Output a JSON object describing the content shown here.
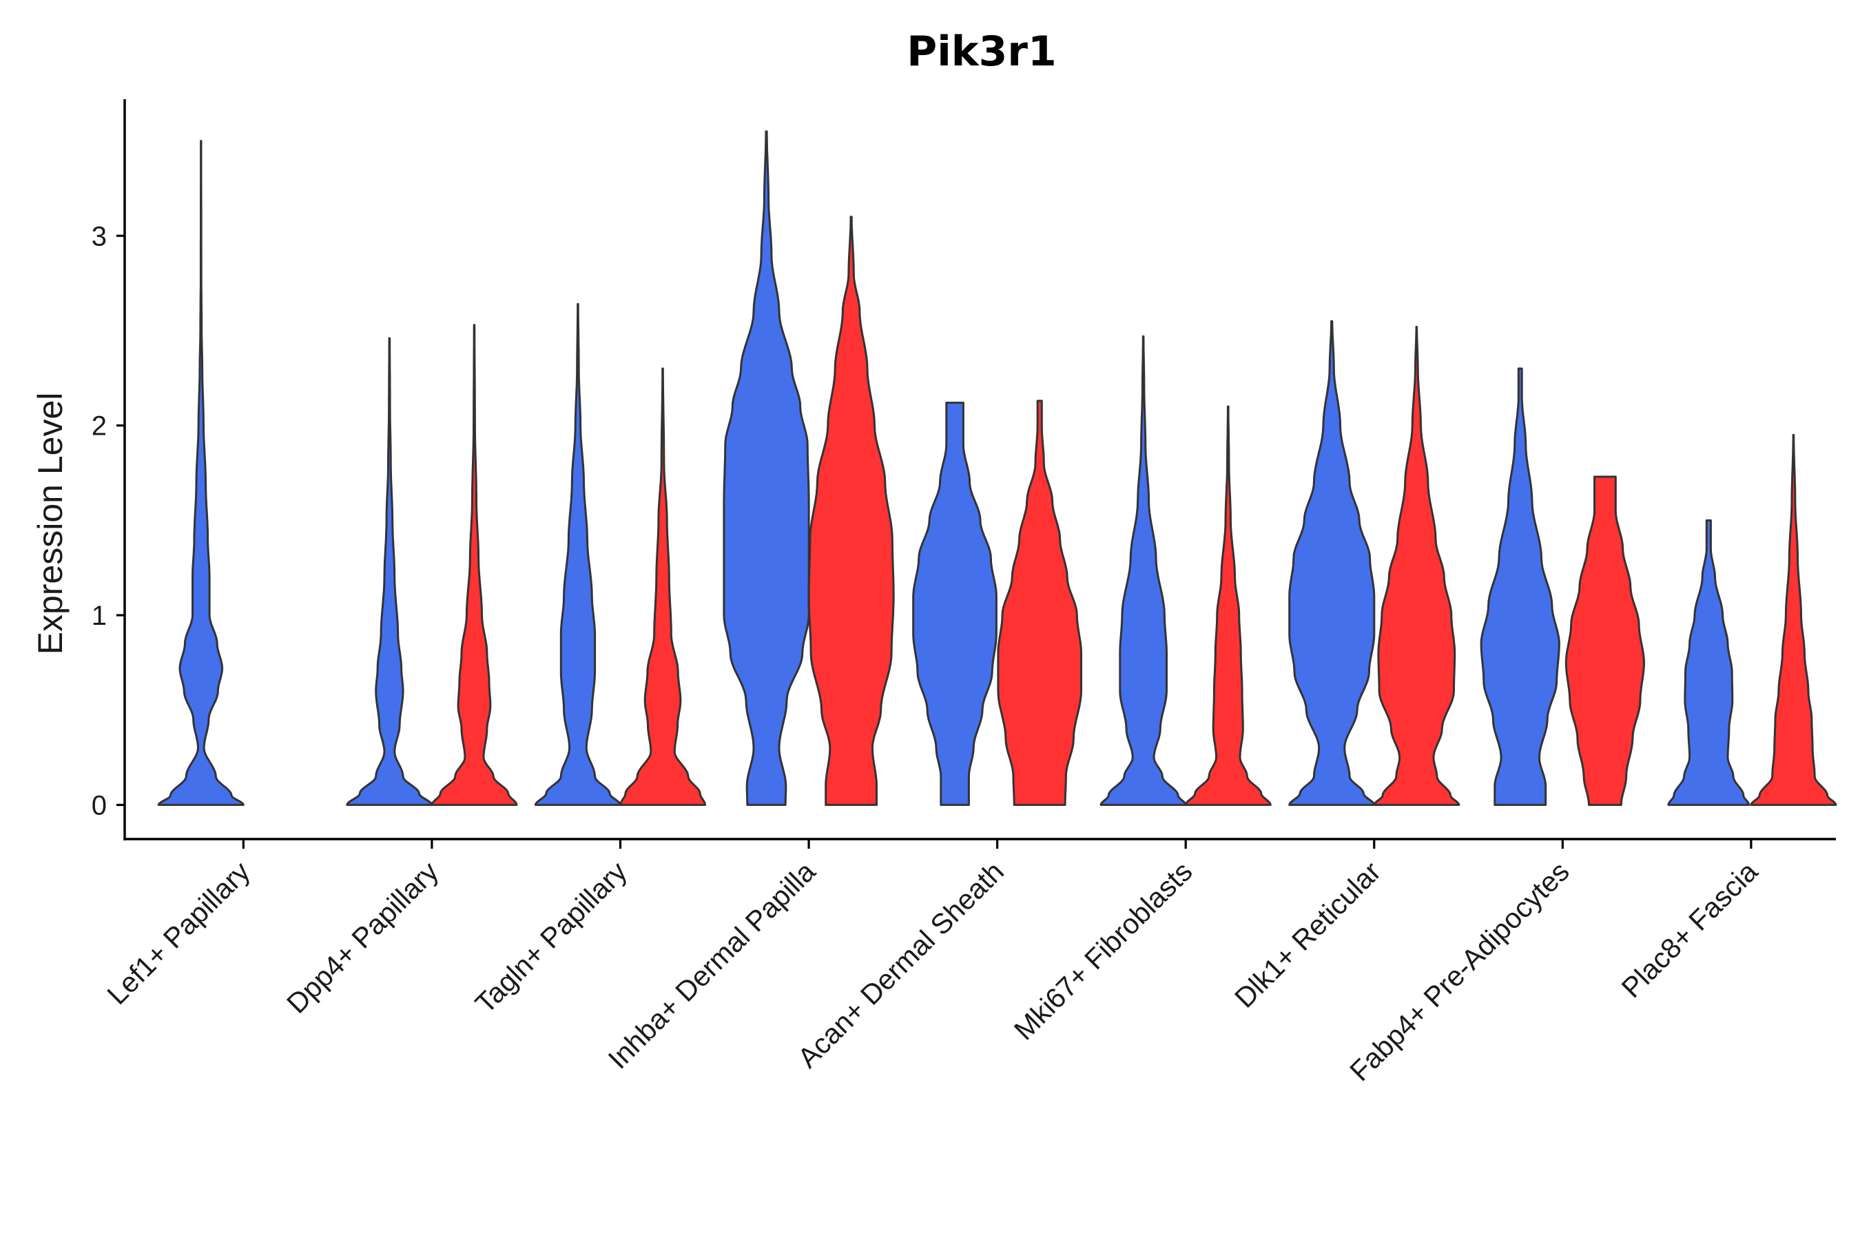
{
  "chart_data": {
    "type": "violin",
    "title": "Pik3r1",
    "xlabel": "",
    "ylabel": "Expression Level",
    "ylim": [
      -0.18,
      3.72
    ],
    "yticks": [
      0,
      1,
      2,
      3
    ],
    "categories": [
      "Lef1+ Papillary",
      "Dpp4+ Papillary",
      "Tagln+ Papillary",
      "Inhba+ Dermal Papilla",
      "Acan+ Dermal Sheath",
      "Mki67+ Fibroblasts",
      "Dlk1+ Reticular",
      "Fabp4+ Pre-Adipocytes",
      "Plac8+ Fascia"
    ],
    "groups": [
      {
        "name": "group1",
        "color": "#4470ec"
      },
      {
        "name": "group2",
        "color": "#ff3333"
      }
    ],
    "violins": [
      {
        "category": "Lef1+ Papillary",
        "group": "group1",
        "max": 3.5,
        "profile": [
          [
            0,
            1.0
          ],
          [
            0.05,
            0.72
          ],
          [
            0.15,
            0.35
          ],
          [
            0.3,
            0.07
          ],
          [
            0.45,
            0.18
          ],
          [
            0.6,
            0.4
          ],
          [
            0.72,
            0.5
          ],
          [
            0.85,
            0.38
          ],
          [
            1.0,
            0.2
          ],
          [
            1.2,
            0.2
          ],
          [
            1.4,
            0.16
          ],
          [
            1.7,
            0.11
          ],
          [
            2.0,
            0.06
          ],
          [
            2.3,
            0.03
          ],
          [
            2.5,
            0.015
          ],
          [
            2.8,
            0.006
          ],
          [
            3.5,
            0.003
          ]
        ]
      },
      {
        "category": "Dpp4+ Papillary",
        "group": "group1",
        "max": 2.46,
        "profile": [
          [
            0,
            1.0
          ],
          [
            0.06,
            0.7
          ],
          [
            0.15,
            0.32
          ],
          [
            0.28,
            0.12
          ],
          [
            0.42,
            0.24
          ],
          [
            0.6,
            0.32
          ],
          [
            0.72,
            0.28
          ],
          [
            0.9,
            0.2
          ],
          [
            1.2,
            0.12
          ],
          [
            1.5,
            0.07
          ],
          [
            1.8,
            0.03
          ],
          [
            2.1,
            0.012
          ],
          [
            2.46,
            0.005
          ]
        ]
      },
      {
        "category": "Dpp4+ Papillary",
        "group": "group2",
        "max": 2.53,
        "profile": [
          [
            0,
            1.0
          ],
          [
            0.06,
            0.8
          ],
          [
            0.15,
            0.45
          ],
          [
            0.25,
            0.22
          ],
          [
            0.4,
            0.3
          ],
          [
            0.52,
            0.38
          ],
          [
            0.65,
            0.35
          ],
          [
            0.8,
            0.3
          ],
          [
            1.0,
            0.18
          ],
          [
            1.3,
            0.1
          ],
          [
            1.6,
            0.05
          ],
          [
            2.0,
            0.015
          ],
          [
            2.53,
            0.005
          ]
        ]
      },
      {
        "category": "Tagln+ Papillary",
        "group": "group1",
        "max": 2.64,
        "profile": [
          [
            0,
            1.0
          ],
          [
            0.06,
            0.75
          ],
          [
            0.15,
            0.4
          ],
          [
            0.3,
            0.2
          ],
          [
            0.5,
            0.33
          ],
          [
            0.7,
            0.4
          ],
          [
            0.9,
            0.4
          ],
          [
            1.1,
            0.33
          ],
          [
            1.4,
            0.22
          ],
          [
            1.7,
            0.14
          ],
          [
            2.0,
            0.06
          ],
          [
            2.3,
            0.02
          ],
          [
            2.64,
            0.005
          ]
        ]
      },
      {
        "category": "Tagln+ Papillary",
        "group": "group2",
        "max": 2.3,
        "profile": [
          [
            0,
            1.0
          ],
          [
            0.06,
            0.88
          ],
          [
            0.15,
            0.6
          ],
          [
            0.28,
            0.28
          ],
          [
            0.42,
            0.35
          ],
          [
            0.55,
            0.42
          ],
          [
            0.7,
            0.36
          ],
          [
            0.9,
            0.2
          ],
          [
            1.2,
            0.15
          ],
          [
            1.5,
            0.1
          ],
          [
            1.8,
            0.03
          ],
          [
            2.3,
            0.005
          ]
        ]
      },
      {
        "category": "Inhba+ Dermal Papilla",
        "group": "group1",
        "max": 3.55,
        "profile": [
          [
            0,
            0.45
          ],
          [
            0.1,
            0.46
          ],
          [
            0.3,
            0.3
          ],
          [
            0.55,
            0.48
          ],
          [
            0.8,
            0.85
          ],
          [
            1.0,
            1.0
          ],
          [
            1.3,
            1.0
          ],
          [
            1.6,
            1.0
          ],
          [
            1.9,
            0.97
          ],
          [
            2.1,
            0.8
          ],
          [
            2.3,
            0.6
          ],
          [
            2.6,
            0.3
          ],
          [
            2.9,
            0.12
          ],
          [
            3.2,
            0.05
          ],
          [
            3.55,
            0.01
          ]
        ]
      },
      {
        "category": "Inhba+ Dermal Papilla",
        "group": "group2",
        "max": 3.1,
        "profile": [
          [
            0,
            0.6
          ],
          [
            0.1,
            0.6
          ],
          [
            0.3,
            0.5
          ],
          [
            0.5,
            0.7
          ],
          [
            0.8,
            0.95
          ],
          [
            1.1,
            1.0
          ],
          [
            1.4,
            0.97
          ],
          [
            1.7,
            0.8
          ],
          [
            2.0,
            0.55
          ],
          [
            2.3,
            0.38
          ],
          [
            2.6,
            0.2
          ],
          [
            2.8,
            0.06
          ],
          [
            3.1,
            0.01
          ]
        ]
      },
      {
        "category": "Acan+ Dermal Sheath",
        "group": "group1",
        "max": 2.12,
        "profile": [
          [
            0,
            0.33
          ],
          [
            0.15,
            0.33
          ],
          [
            0.3,
            0.44
          ],
          [
            0.5,
            0.65
          ],
          [
            0.7,
            0.88
          ],
          [
            0.9,
            0.98
          ],
          [
            1.1,
            0.98
          ],
          [
            1.3,
            0.85
          ],
          [
            1.5,
            0.6
          ],
          [
            1.7,
            0.35
          ],
          [
            1.9,
            0.2
          ],
          [
            2.12,
            0.2
          ]
        ]
      },
      {
        "category": "Acan+ Dermal Sheath",
        "group": "group2",
        "max": 2.13,
        "profile": [
          [
            0,
            0.6
          ],
          [
            0.15,
            0.62
          ],
          [
            0.35,
            0.8
          ],
          [
            0.6,
            0.98
          ],
          [
            0.8,
            0.98
          ],
          [
            1.0,
            0.88
          ],
          [
            1.2,
            0.65
          ],
          [
            1.4,
            0.48
          ],
          [
            1.6,
            0.3
          ],
          [
            1.8,
            0.1
          ],
          [
            2.0,
            0.05
          ],
          [
            2.13,
            0.05
          ]
        ]
      },
      {
        "category": "Mki67+ Fibroblasts",
        "group": "group1",
        "max": 2.47,
        "profile": [
          [
            0,
            1.0
          ],
          [
            0.05,
            0.82
          ],
          [
            0.15,
            0.45
          ],
          [
            0.25,
            0.25
          ],
          [
            0.4,
            0.4
          ],
          [
            0.6,
            0.55
          ],
          [
            0.8,
            0.55
          ],
          [
            1.0,
            0.5
          ],
          [
            1.3,
            0.3
          ],
          [
            1.6,
            0.13
          ],
          [
            1.9,
            0.05
          ],
          [
            2.2,
            0.02
          ],
          [
            2.47,
            0.005
          ]
        ]
      },
      {
        "category": "Mki67+ Fibroblasts",
        "group": "group2",
        "max": 2.1,
        "profile": [
          [
            0,
            1.0
          ],
          [
            0.06,
            0.78
          ],
          [
            0.15,
            0.45
          ],
          [
            0.25,
            0.28
          ],
          [
            0.4,
            0.35
          ],
          [
            0.6,
            0.33
          ],
          [
            0.8,
            0.3
          ],
          [
            1.0,
            0.26
          ],
          [
            1.2,
            0.16
          ],
          [
            1.5,
            0.06
          ],
          [
            1.8,
            0.02
          ],
          [
            2.1,
            0.005
          ]
        ]
      },
      {
        "category": "Dlk1+ Reticular",
        "group": "group1",
        "max": 2.55,
        "profile": [
          [
            0,
            1.0
          ],
          [
            0.06,
            0.75
          ],
          [
            0.15,
            0.42
          ],
          [
            0.3,
            0.3
          ],
          [
            0.5,
            0.6
          ],
          [
            0.7,
            0.88
          ],
          [
            0.9,
            1.0
          ],
          [
            1.1,
            1.0
          ],
          [
            1.3,
            0.9
          ],
          [
            1.5,
            0.65
          ],
          [
            1.7,
            0.42
          ],
          [
            2.0,
            0.2
          ],
          [
            2.3,
            0.05
          ],
          [
            2.55,
            0.01
          ]
        ]
      },
      {
        "category": "Dlk1+ Reticular",
        "group": "group2",
        "max": 2.52,
        "profile": [
          [
            0,
            1.0
          ],
          [
            0.05,
            0.8
          ],
          [
            0.15,
            0.48
          ],
          [
            0.25,
            0.4
          ],
          [
            0.4,
            0.6
          ],
          [
            0.6,
            0.88
          ],
          [
            0.8,
            0.9
          ],
          [
            1.0,
            0.82
          ],
          [
            1.2,
            0.65
          ],
          [
            1.4,
            0.45
          ],
          [
            1.7,
            0.27
          ],
          [
            2.0,
            0.1
          ],
          [
            2.3,
            0.03
          ],
          [
            2.52,
            0.005
          ]
        ]
      },
      {
        "category": "Fabp4+ Pre-Adipocytes",
        "group": "group1",
        "max": 2.3,
        "profile": [
          [
            0,
            0.6
          ],
          [
            0.1,
            0.6
          ],
          [
            0.25,
            0.45
          ],
          [
            0.45,
            0.64
          ],
          [
            0.65,
            0.86
          ],
          [
            0.85,
            0.92
          ],
          [
            1.05,
            0.75
          ],
          [
            1.3,
            0.5
          ],
          [
            1.6,
            0.28
          ],
          [
            1.9,
            0.13
          ],
          [
            2.15,
            0.04
          ],
          [
            2.3,
            0.04
          ]
        ]
      },
      {
        "category": "Fabp4+ Pre-Adipocytes",
        "group": "group2",
        "max": 1.73,
        "profile": [
          [
            0,
            0.38
          ],
          [
            0.15,
            0.5
          ],
          [
            0.35,
            0.65
          ],
          [
            0.55,
            0.83
          ],
          [
            0.75,
            0.92
          ],
          [
            0.95,
            0.8
          ],
          [
            1.15,
            0.6
          ],
          [
            1.35,
            0.42
          ],
          [
            1.55,
            0.25
          ],
          [
            1.73,
            0.25
          ]
        ]
      },
      {
        "category": "Plac8+ Fascia",
        "group": "group1",
        "max": 1.5,
        "profile": [
          [
            0,
            0.95
          ],
          [
            0.05,
            0.82
          ],
          [
            0.15,
            0.58
          ],
          [
            0.25,
            0.45
          ],
          [
            0.4,
            0.48
          ],
          [
            0.55,
            0.56
          ],
          [
            0.7,
            0.55
          ],
          [
            0.85,
            0.45
          ],
          [
            1.0,
            0.33
          ],
          [
            1.2,
            0.15
          ],
          [
            1.35,
            0.05
          ],
          [
            1.5,
            0.05
          ]
        ]
      },
      {
        "category": "Plac8+ Fascia",
        "group": "group2",
        "max": 1.95,
        "profile": [
          [
            0,
            1.0
          ],
          [
            0.05,
            0.8
          ],
          [
            0.15,
            0.5
          ],
          [
            0.3,
            0.45
          ],
          [
            0.45,
            0.43
          ],
          [
            0.6,
            0.35
          ],
          [
            0.8,
            0.26
          ],
          [
            1.0,
            0.18
          ],
          [
            1.3,
            0.1
          ],
          [
            1.6,
            0.04
          ],
          [
            1.95,
            0.005
          ]
        ]
      }
    ]
  }
}
